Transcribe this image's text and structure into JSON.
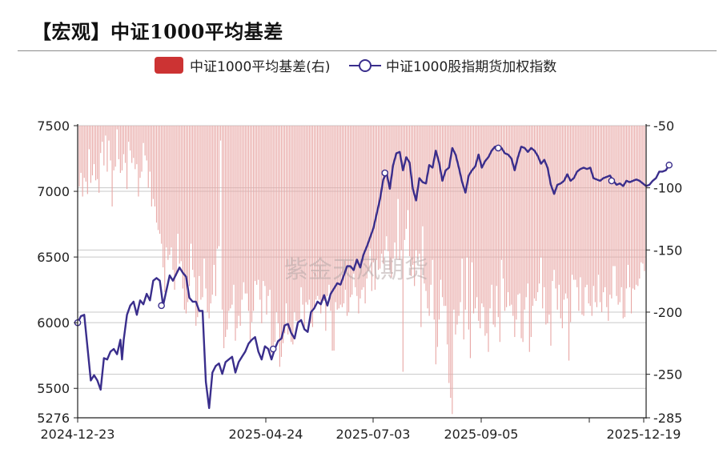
{
  "page": {
    "title": "【宏观】中证1000平均基差"
  },
  "watermark": "紫金天风期货",
  "colors": {
    "bar": "#e8a8a6",
    "bar_legend": "#cc3333",
    "line": "#3a2e8c",
    "grid": "#c8c8c8"
  },
  "chart_data": {
    "type": "bar+line",
    "x_tick_labels": [
      "2024-12-23",
      "2025-04-24",
      "2025-07-03",
      "2025-09-05",
      "2025-12-19"
    ],
    "left_axis": {
      "ticks": [
        5276,
        5500,
        6000,
        6500,
        7000,
        7500
      ],
      "range": [
        5276,
        7500
      ]
    },
    "right_axis": {
      "ticks": [
        -50,
        -100,
        -150,
        -200,
        -250,
        -285
      ],
      "range": [
        -285,
        -50
      ]
    },
    "series": [
      {
        "name": "中证1000平均基差(右)",
        "type": "bar",
        "axis": "right",
        "values": [
          -108,
          -99,
          -88,
          -107,
          -92,
          -95,
          -105,
          -69,
          -96,
          -90,
          -81,
          -94,
          -93,
          -104,
          -72,
          -63,
          -82,
          -58,
          -87,
          -62,
          -78,
          -115,
          -86,
          -83,
          -53,
          -77,
          -88,
          -86,
          -73,
          -80,
          -101,
          -63,
          -70,
          -80,
          -76,
          -85,
          -81,
          -107,
          -92,
          -87,
          -64,
          -74,
          -78,
          -100,
          -87,
          -115,
          -109,
          -115,
          -128,
          -134,
          -137,
          -145,
          -164,
          -184,
          -148,
          -158,
          -154,
          -148,
          -166,
          -182,
          -171,
          -137,
          -161,
          -159,
          -181,
          -198,
          -201,
          -192,
          -179,
          -145,
          -166,
          -172,
          -211,
          -204,
          -171,
          -190,
          -188,
          -157,
          -181,
          -200,
          -205,
          -193,
          -186,
          -162,
          -187,
          -149,
          -147,
          -62,
          -198,
          -229,
          -220,
          -214,
          -199,
          -197,
          -194,
          -178,
          -223,
          -213,
          -203,
          -211,
          -190,
          -176,
          -185,
          -185,
          -199,
          -225,
          -208,
          -199,
          -175,
          -178,
          -174,
          -190,
          -209,
          -175,
          -179,
          -202,
          -187,
          -182,
          -233,
          -230,
          -224,
          -200,
          -209,
          -244,
          -236,
          -225,
          -217,
          -193,
          -218,
          -211,
          -224,
          -226,
          -200,
          -207,
          -211,
          -206,
          -180,
          -194,
          -212,
          -192,
          -194,
          -190,
          -209,
          -212,
          -198,
          -190,
          -187,
          -190,
          -201,
          -189,
          -191,
          -215,
          -187,
          -178,
          -199,
          -231,
          -231,
          -192,
          -198,
          -197,
          -194,
          -196,
          -193,
          -182,
          -203,
          -200,
          -188,
          -186,
          -169,
          -180,
          -187,
          -201,
          -189,
          -182,
          -180,
          -193,
          -173,
          -167,
          -149,
          -183,
          -160,
          -182,
          -158,
          -166,
          -165,
          -153,
          -161,
          -150,
          -139,
          -151,
          -166,
          -172,
          -157,
          -144,
          -157,
          -109,
          -158,
          -150,
          -248,
          -142,
          -133,
          -118,
          -155,
          -171,
          -162,
          -179,
          -150,
          -157,
          -153,
          -212,
          -131,
          -177,
          -183,
          -197,
          -203,
          -178,
          -158,
          -206,
          -242,
          -228,
          -206,
          -174,
          -188,
          -195,
          -195,
          -226,
          -257,
          -269,
          -282,
          -198,
          -218,
          -210,
          -203,
          -192,
          -157,
          -222,
          -198,
          -156,
          -214,
          -237,
          -160,
          -201,
          -197,
          -188,
          -207,
          -213,
          -193,
          -196,
          -219,
          -217,
          -232,
          -197,
          -178,
          -210,
          -212,
          -179,
          -204,
          -224,
          -158,
          -173,
          -199,
          -196,
          -184,
          -195,
          -194,
          -203,
          -220,
          -206,
          -186,
          -185,
          -221,
          -224,
          -198,
          -188,
          -177,
          -232,
          -220,
          -195,
          -189,
          -191,
          -184,
          -177,
          -156,
          -197,
          -180,
          -210,
          -209,
          -202,
          -227,
          -175,
          -166,
          -181,
          -198,
          -178,
          -205,
          -213,
          -190,
          -185,
          -189,
          -239,
          -208,
          -170,
          -174,
          -174,
          -180,
          -199,
          -172,
          -202,
          -203,
          -180,
          -178,
          -193,
          -195,
          -203,
          -179,
          -192,
          -196,
          -170,
          -192,
          -200,
          -184,
          -180,
          -196,
          -207,
          -186,
          -189,
          -163,
          -163,
          -187,
          -194,
          -192,
          -180,
          -205,
          -204,
          -181,
          -162,
          -180,
          -201,
          -181,
          -182,
          -178,
          -179,
          -173,
          -160,
          -161,
          -167,
          -166
        ]
      },
      {
        "name": "中证1000股指期货加权指数",
        "type": "line",
        "axis": "left",
        "x_index": [
          0,
          2,
          4,
          8,
          10,
          12,
          14,
          16,
          18,
          20,
          22,
          24,
          26,
          27,
          28,
          30,
          32,
          34,
          36,
          38,
          40,
          42,
          44,
          46,
          48,
          50,
          52,
          56,
          58,
          62,
          64,
          66,
          68,
          70,
          72,
          74,
          76,
          78,
          80,
          82,
          84,
          86,
          88,
          90,
          92,
          94,
          96,
          98,
          100,
          102,
          104,
          106,
          108,
          110,
          112,
          114,
          116,
          118,
          120,
          122,
          124,
          126,
          128,
          130,
          132,
          134,
          136,
          138,
          140,
          142,
          144,
          146,
          148,
          150,
          152,
          154,
          156,
          158,
          160,
          162,
          164,
          166,
          168,
          170,
          172,
          174,
          176,
          178,
          180,
          182,
          184,
          186,
          188,
          190,
          192,
          194,
          196,
          198,
          200,
          202,
          204,
          206,
          208,
          210,
          212,
          214,
          216,
          218,
          220,
          222,
          224,
          226,
          228,
          230,
          232,
          234,
          236,
          238,
          240,
          242,
          244,
          246,
          248,
          250,
          252,
          254,
          256,
          258,
          260,
          262,
          264,
          266,
          268,
          270,
          272,
          274,
          276,
          278,
          280,
          282,
          284,
          286,
          288,
          290,
          292,
          294,
          296,
          298,
          300,
          302,
          304,
          306,
          308,
          310,
          312,
          314,
          316,
          318,
          320,
          322,
          324,
          326,
          328,
          330,
          332,
          334,
          336,
          338,
          340,
          342,
          344,
          346,
          348,
          350,
          352,
          354,
          356,
          358,
          360
        ],
        "values": [
          6000,
          6050,
          6060,
          5560,
          5600,
          5560,
          5490,
          5730,
          5720,
          5780,
          5800,
          5760,
          5870,
          5720,
          5870,
          6060,
          6130,
          6160,
          6060,
          6170,
          6140,
          6220,
          6170,
          6320,
          6340,
          6320,
          6130,
          6360,
          6320,
          6420,
          6380,
          6350,
          6190,
          6160,
          6160,
          6090,
          6090,
          5550,
          5350,
          5620,
          5670,
          5690,
          5610,
          5700,
          5720,
          5740,
          5620,
          5700,
          5740,
          5780,
          5840,
          5870,
          5890,
          5780,
          5720,
          5820,
          5800,
          5720,
          5800,
          5860,
          5880,
          5980,
          5990,
          5920,
          5880,
          6000,
          6020,
          5950,
          5930,
          6080,
          6110,
          6160,
          6140,
          6210,
          6130,
          6220,
          6260,
          6300,
          6290,
          6360,
          6430,
          6430,
          6400,
          6480,
          6420,
          6520,
          6580,
          6650,
          6720,
          6830,
          6940,
          7090,
          7140,
          7020,
          7200,
          7290,
          7300,
          7160,
          7260,
          7220,
          7020,
          6930,
          7100,
          7070,
          7060,
          7200,
          7180,
          7310,
          7220,
          7080,
          7160,
          7180,
          7330,
          7280,
          7180,
          7070,
          6990,
          7120,
          7160,
          7190,
          7280,
          7180,
          7230,
          7260,
          7310,
          7340,
          7330,
          7330,
          7290,
          7280,
          7250,
          7160,
          7260,
          7340,
          7330,
          7300,
          7330,
          7310,
          7270,
          7210,
          7240,
          7180,
          7050,
          6980,
          7050,
          7060,
          7080,
          7130,
          7080,
          7100,
          7150,
          7170,
          7180,
          7170,
          7180,
          7100,
          7090,
          7080,
          7100,
          7110,
          7120,
          7080,
          7050,
          7060,
          7040,
          7080,
          7070,
          7080,
          7090,
          7080,
          7060,
          7040,
          7050,
          7080,
          7100,
          7150,
          7150,
          7160,
          7200
        ]
      }
    ],
    "markers_on_line_x_index": [
      0,
      51,
      119,
      187,
      256,
      325,
      360
    ],
    "grid": "horizontal",
    "legend": "top"
  }
}
